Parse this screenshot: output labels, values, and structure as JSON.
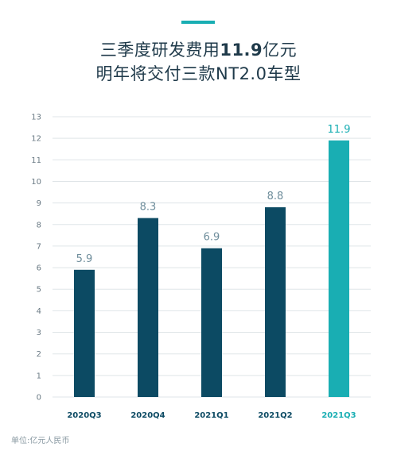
{
  "header": {
    "title_line1_before": "三季度研发费用",
    "title_line1_bold": "11.9",
    "title_line1_after": "亿元",
    "title_line2": "明年将交付三款NT2.0车型"
  },
  "colors": {
    "accent": "#19aeb3",
    "bar_default": "#0c4a63",
    "bar_highlight": "#19aeb3",
    "value_label": "#6e8d9b",
    "axis_text": "#6a7a84",
    "grid": "#dfe5e8"
  },
  "footnote": "单位:亿元人民币",
  "chart_data": {
    "type": "bar",
    "categories": [
      "2020Q3",
      "2020Q4",
      "2021Q1",
      "2021Q2",
      "2021Q3"
    ],
    "values": [
      5.9,
      8.3,
      6.9,
      8.8,
      11.9
    ],
    "value_labels": [
      "5.9",
      "8.3",
      "6.9",
      "8.8",
      "11.9"
    ],
    "highlight_index": 4,
    "ylim": [
      0,
      13
    ],
    "yticks": [
      0,
      1,
      2,
      3,
      4,
      5,
      6,
      7,
      8,
      9,
      10,
      11,
      12,
      13
    ],
    "grid": true,
    "legend": "none"
  }
}
